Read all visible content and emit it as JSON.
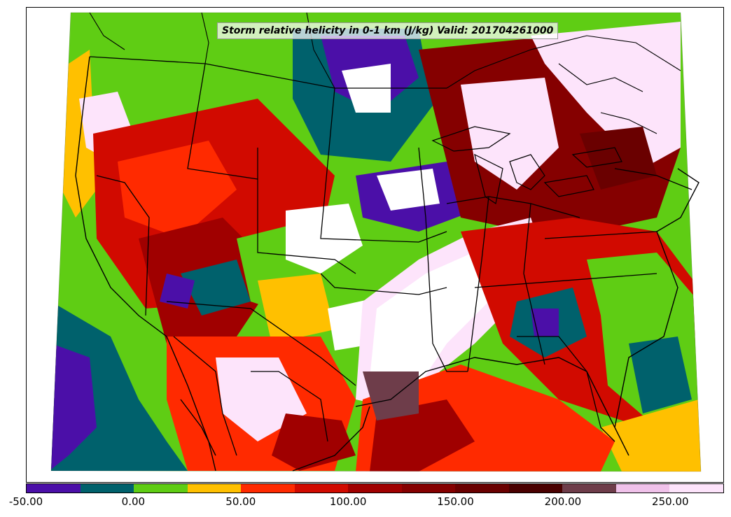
{
  "title": "Storm relative helicity in 0-1 km (J/kg) Valid: 201704261000",
  "colorbar": {
    "ticks": [
      "-50.00",
      "0.00",
      "50.00",
      "100.00",
      "150.00",
      "200.00",
      "250.00"
    ],
    "tick_values": [
      -50,
      0,
      50,
      100,
      150,
      200,
      250
    ],
    "range": [
      -50,
      275
    ],
    "levels": [
      -50,
      -25,
      0,
      25,
      50,
      75,
      100,
      125,
      150,
      175,
      200,
      225,
      250,
      275
    ],
    "colors": [
      "#4b0fa8",
      "#00616c",
      "#5fcd14",
      "#ffc000",
      "#ff2a00",
      "#d10a00",
      "#a00000",
      "#850000",
      "#6a0000",
      "#4a0000",
      "#6e3d4a",
      "#f0c2ea",
      "#fde4fb"
    ]
  },
  "map": {
    "region": "CONUS",
    "land_base_color": "#5fcd14",
    "outside_color": "#ffffff"
  }
}
